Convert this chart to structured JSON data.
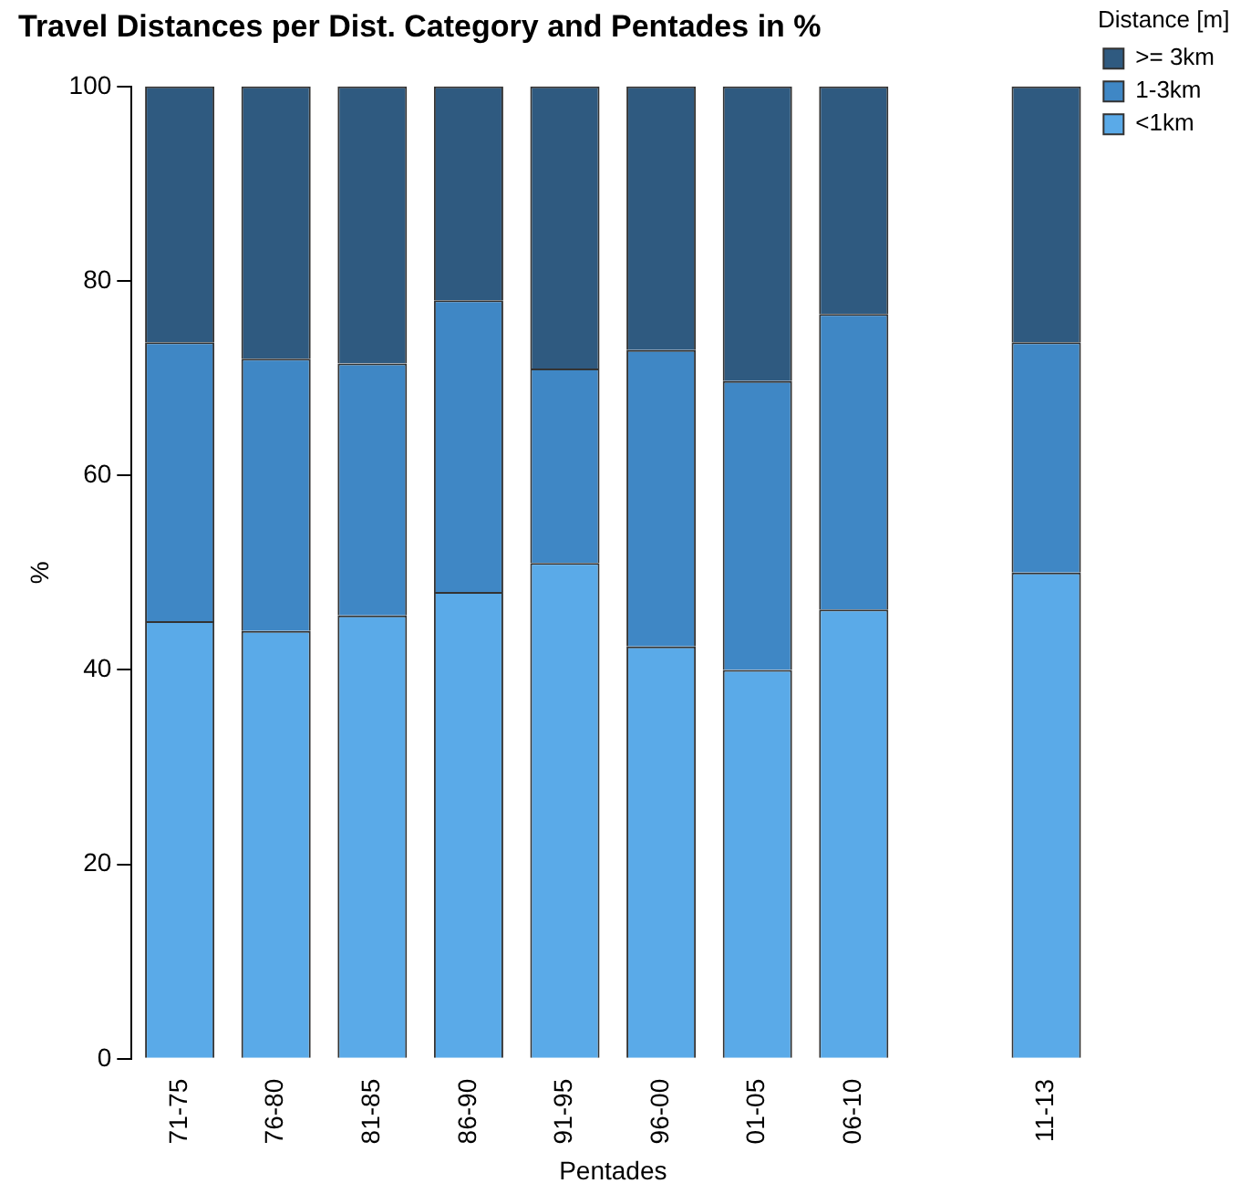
{
  "chart_data": {
    "type": "bar",
    "title": "Travel Distances per Dist. Category and Pentades in %",
    "xlabel": "Pentades",
    "ylabel": "%",
    "legend_title": "Distance [m]",
    "categories": [
      "71-75",
      "76-80",
      "81-85",
      "86-90",
      "91-95",
      "96-00",
      "01-05",
      "06-10",
      null,
      "11-13"
    ],
    "stacked": true,
    "ylim": [
      0,
      100
    ],
    "yticks": [
      0,
      20,
      40,
      60,
      80,
      100
    ],
    "grid": false,
    "legend": "right",
    "series": [
      {
        "name": "<1km",
        "color": "#5aaae8",
        "values": [
          45,
          44,
          45.6,
          48,
          51,
          42.4,
          40,
          46.2,
          null,
          50
        ]
      },
      {
        "name": "1-3km",
        "color": "#3f87c5",
        "values": [
          28.7,
          28,
          25.9,
          30,
          20,
          30.5,
          29.7,
          30.4,
          null,
          23.7
        ]
      },
      {
        "name": ">= 3km",
        "color": "#2f5a80",
        "values": [
          26.3,
          28,
          28.5,
          22,
          29,
          27.1,
          30.3,
          23.4,
          null,
          26.3
        ]
      }
    ]
  }
}
